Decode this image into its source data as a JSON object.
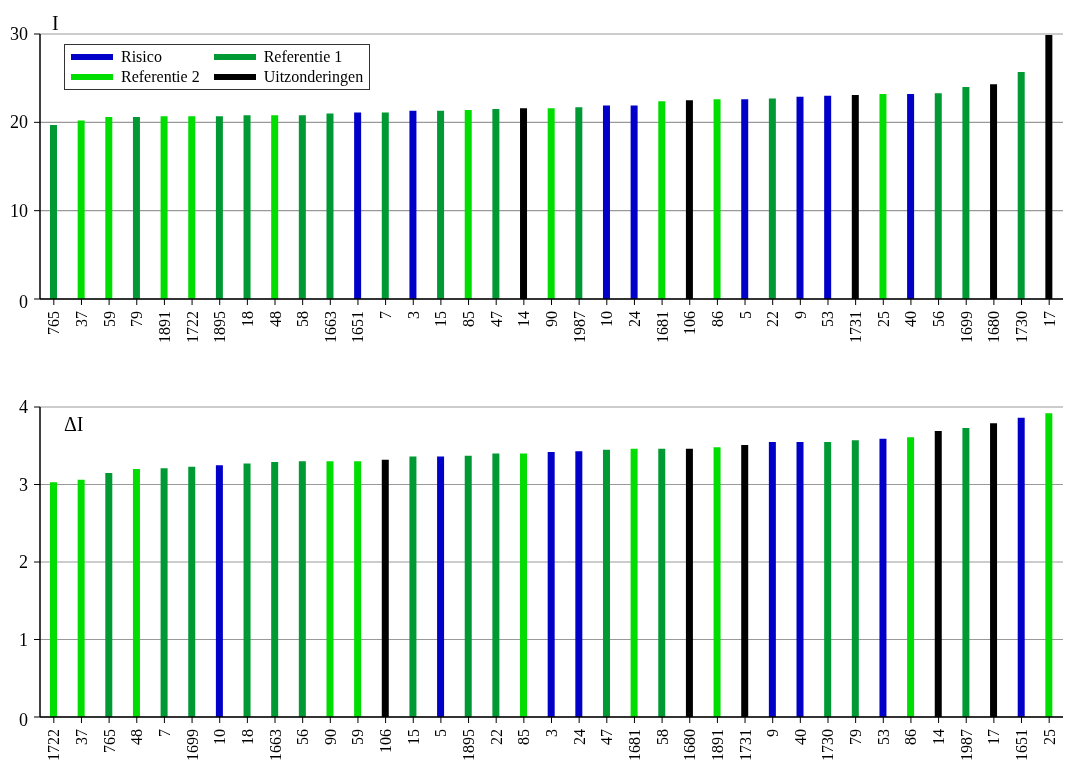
{
  "chart_data": [
    {
      "type": "bar",
      "title": "I",
      "stacked": true,
      "grid": "y",
      "legend": "top left",
      "ylim": [
        0,
        30
      ],
      "yticks": [
        0,
        10,
        20,
        30
      ],
      "categories": [
        "765",
        "37",
        "59",
        "79",
        "1891",
        "1722",
        "1895",
        "18",
        "48",
        "58",
        "1663",
        "1651",
        "7",
        "3",
        "15",
        "85",
        "47",
        "14",
        "90",
        "1987",
        "10",
        "24",
        "1681",
        "106",
        "86",
        "5",
        "22",
        "9",
        "53",
        "1731",
        "25",
        "40",
        "56",
        "1699",
        "1680",
        "1730",
        "17"
      ],
      "series": [
        {
          "name": "Risico",
          "color": "#0000c8",
          "values": [
            null,
            null,
            null,
            null,
            null,
            null,
            null,
            null,
            null,
            null,
            null,
            21.1,
            null,
            21.3,
            null,
            null,
            null,
            null,
            null,
            null,
            21.9,
            21.9,
            null,
            null,
            null,
            22.6,
            null,
            22.9,
            23.0,
            null,
            null,
            23.2,
            null,
            null,
            null,
            null,
            null
          ]
        },
        {
          "name": "Referentie 1",
          "color": "#009933",
          "values": [
            19.7,
            null,
            null,
            20.6,
            null,
            null,
            20.7,
            20.8,
            null,
            20.8,
            21.0,
            null,
            21.1,
            null,
            21.3,
            null,
            21.5,
            null,
            null,
            21.7,
            null,
            null,
            null,
            null,
            null,
            null,
            22.7,
            null,
            null,
            null,
            null,
            null,
            23.3,
            24.0,
            null,
            25.7,
            null
          ]
        },
        {
          "name": "Referentie 2",
          "color": "#00dd00",
          "values": [
            null,
            20.2,
            20.6,
            null,
            20.7,
            20.7,
            null,
            null,
            20.8,
            null,
            null,
            null,
            null,
            null,
            null,
            21.4,
            null,
            null,
            21.6,
            null,
            null,
            null,
            22.4,
            null,
            22.6,
            null,
            null,
            null,
            null,
            null,
            23.2,
            null,
            null,
            null,
            null,
            null,
            null
          ]
        },
        {
          "name": "Uitzonderingen",
          "color": "#000000",
          "values": [
            null,
            null,
            null,
            null,
            null,
            null,
            null,
            null,
            null,
            null,
            null,
            null,
            null,
            null,
            null,
            null,
            null,
            21.6,
            null,
            null,
            null,
            null,
            null,
            22.5,
            null,
            null,
            null,
            null,
            null,
            23.1,
            null,
            null,
            null,
            null,
            24.3,
            null,
            29.9
          ]
        }
      ]
    },
    {
      "type": "bar",
      "title": "ΔI",
      "stacked": true,
      "grid": "y",
      "ylim": [
        0,
        4
      ],
      "yticks": [
        0,
        1,
        2,
        3,
        4
      ],
      "categories": [
        "1722",
        "37",
        "765",
        "48",
        "7",
        "1699",
        "10",
        "18",
        "1663",
        "56",
        "90",
        "59",
        "106",
        "15",
        "5",
        "1895",
        "22",
        "85",
        "3",
        "24",
        "47",
        "1681",
        "58",
        "1680",
        "1891",
        "1731",
        "9",
        "40",
        "1730",
        "79",
        "53",
        "86",
        "14",
        "1987",
        "17",
        "1651",
        "25"
      ],
      "series": [
        {
          "color": "#0000c8",
          "values": [
            null,
            null,
            null,
            null,
            null,
            null,
            3.25,
            null,
            null,
            null,
            null,
            null,
            null,
            null,
            3.36,
            null,
            null,
            null,
            3.42,
            3.43,
            null,
            null,
            null,
            null,
            null,
            null,
            3.55,
            3.55,
            null,
            null,
            3.59,
            null,
            null,
            null,
            null,
            3.86,
            null
          ]
        },
        {
          "color": "#009933",
          "values": [
            null,
            null,
            3.15,
            null,
            3.21,
            3.23,
            null,
            3.27,
            3.29,
            3.3,
            null,
            null,
            null,
            3.36,
            null,
            3.37,
            3.4,
            null,
            null,
            null,
            3.45,
            null,
            3.46,
            null,
            null,
            null,
            null,
            null,
            3.55,
            3.57,
            null,
            null,
            null,
            3.73,
            null,
            null,
            null
          ]
        },
        {
          "color": "#00dd00",
          "values": [
            3.03,
            3.06,
            null,
            3.2,
            null,
            null,
            null,
            null,
            null,
            null,
            3.3,
            3.3,
            null,
            null,
            null,
            null,
            null,
            3.4,
            null,
            null,
            null,
            3.46,
            null,
            null,
            3.48,
            null,
            null,
            null,
            null,
            null,
            null,
            3.61,
            null,
            null,
            null,
            null,
            3.92
          ]
        },
        {
          "color": "#000000",
          "values": [
            null,
            null,
            null,
            null,
            null,
            null,
            null,
            null,
            null,
            null,
            null,
            null,
            3.32,
            null,
            null,
            null,
            null,
            null,
            null,
            null,
            null,
            null,
            null,
            3.46,
            null,
            3.51,
            null,
            null,
            null,
            null,
            null,
            null,
            3.69,
            null,
            3.79,
            null,
            null
          ]
        }
      ]
    }
  ]
}
